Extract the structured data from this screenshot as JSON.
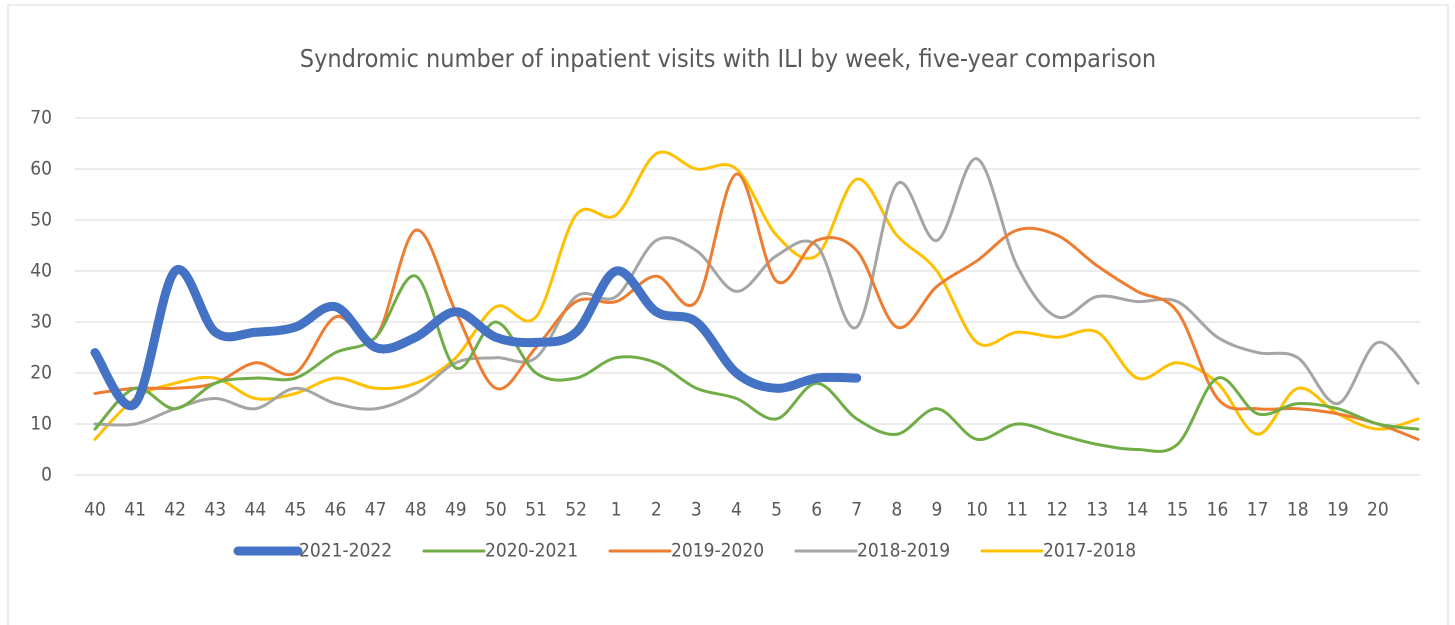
{
  "chart_data": {
    "type": "line",
    "title": "Syndromic number of inpatient visits with ILI by week, five-year comparison",
    "categories": [
      "40",
      "41",
      "42",
      "43",
      "44",
      "45",
      "46",
      "47",
      "48",
      "49",
      "50",
      "51",
      "52",
      "1",
      "2",
      "3",
      "4",
      "5",
      "6",
      "7",
      "8",
      "9",
      "10",
      "11",
      "12",
      "13",
      "14",
      "15",
      "16",
      "17",
      "18",
      "19",
      "20",
      null
    ],
    "ylim": [
      0,
      70
    ],
    "yticks": [
      0,
      10,
      20,
      30,
      40,
      50,
      60,
      70
    ],
    "grid": true,
    "smooth": true,
    "legend": "bottom",
    "series": [
      {
        "name": "2021-2022",
        "color": "#4472c4",
        "values": [
          24,
          14,
          40,
          28,
          28,
          29,
          33,
          25,
          27,
          32,
          27,
          26,
          28,
          40,
          32,
          30,
          20,
          17,
          19,
          19,
          null,
          null,
          null,
          null,
          null,
          null,
          null,
          null,
          null,
          null,
          null,
          null,
          null,
          null
        ]
      },
      {
        "name": "2020-2021",
        "color": "#70ad47",
        "values": [
          9,
          17,
          13,
          18,
          19,
          19,
          24,
          27,
          39,
          21,
          30,
          20,
          19,
          23,
          22,
          17,
          15,
          11,
          18,
          11,
          8,
          13,
          7,
          10,
          8,
          6,
          5,
          6,
          19,
          12,
          14,
          13,
          10,
          9
        ]
      },
      {
        "name": "2019-2020",
        "color": "#ed7d31",
        "values": [
          16,
          17,
          17,
          18,
          22,
          20,
          31,
          27,
          48,
          32,
          17,
          25,
          34,
          34,
          39,
          34,
          59,
          38,
          46,
          44,
          29,
          37,
          42,
          48,
          47,
          41,
          36,
          32,
          15,
          13,
          13,
          12,
          10,
          7
        ]
      },
      {
        "name": "2018-2019",
        "color": "#a5a5a5",
        "values": [
          10,
          10,
          13,
          15,
          13,
          17,
          14,
          13,
          16,
          22,
          23,
          23,
          35,
          35,
          46,
          44,
          36,
          43,
          45,
          29,
          57,
          46,
          62,
          41,
          31,
          35,
          34,
          34,
          27,
          24,
          23,
          14,
          26,
          18
        ]
      },
      {
        "name": "2017-2018",
        "color": "#ffc000",
        "values": [
          7,
          15,
          18,
          19,
          15,
          16,
          19,
          17,
          18,
          23,
          33,
          31,
          51,
          51,
          63,
          60,
          60,
          47,
          43,
          58,
          47,
          40,
          26,
          28,
          27,
          28,
          19,
          22,
          18,
          8,
          17,
          12,
          9,
          11
        ]
      }
    ]
  }
}
